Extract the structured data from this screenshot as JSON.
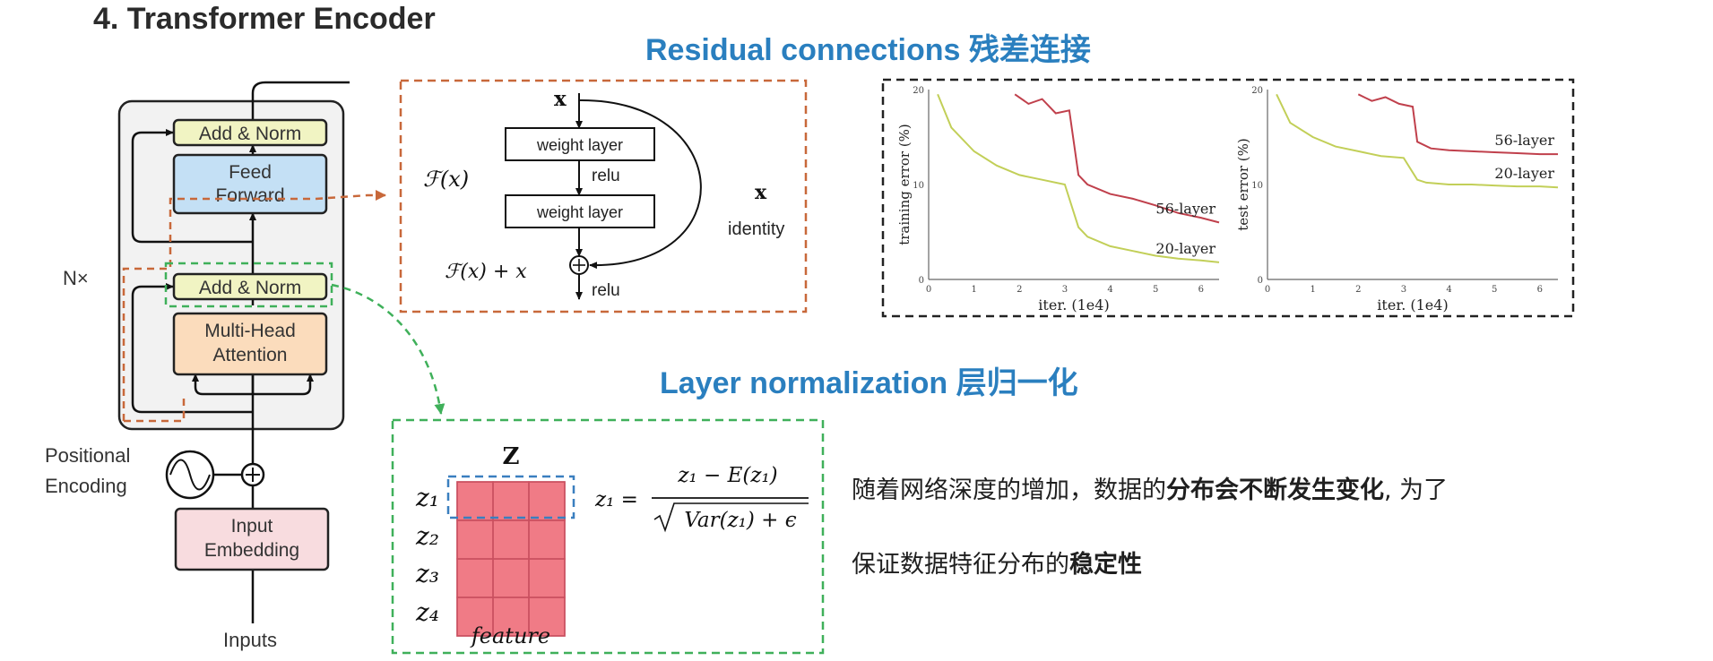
{
  "slide": {
    "title": "4.  Transformer Encoder",
    "residual_title": "Residual connections 残差连接",
    "layernorm_title": "Layer normalization 层归一化"
  },
  "encoder": {
    "add_norm_top": "Add & Norm",
    "feed_forward_line1": "Feed",
    "feed_forward_line2": "Forward",
    "nx": "N×",
    "add_norm_bottom": "Add & Norm",
    "attention_line1": "Multi-Head",
    "attention_line2": "Attention",
    "positional_line1": "Positional",
    "positional_line2": "Encoding",
    "embedding_line1": "Input",
    "embedding_line2": "Embedding",
    "inputs": "Inputs"
  },
  "residual_block": {
    "x_top": "x",
    "weight_layer_1": "weight layer",
    "relu_1": "relu",
    "weight_layer_2": "weight layer",
    "fx": "ℱ(x)",
    "x_identity": "x",
    "identity": "identity",
    "fx_plus_x": "ℱ(x) + x",
    "relu_2": "relu"
  },
  "training_chart": {
    "ylabel": "training error (%)",
    "xlabel": "iter. (1e4)",
    "series_56": "56-layer",
    "series_20": "20-layer",
    "yticks": [
      "0",
      "10",
      "20"
    ],
    "xticks": [
      "0",
      "1",
      "2",
      "3",
      "4",
      "5",
      "6"
    ]
  },
  "test_chart": {
    "ylabel": "test error (%)",
    "xlabel": "iter. (1e4)",
    "series_56": "56-layer",
    "series_20": "20-layer",
    "yticks": [
      "0",
      "10",
      "20"
    ],
    "xticks": [
      "0",
      "1",
      "2",
      "3",
      "4",
      "5",
      "6"
    ]
  },
  "chart_data": [
    {
      "type": "line",
      "ylabel": "training error (%)",
      "xlabel": "iter. (1e4)",
      "xlim": [
        0,
        6.4
      ],
      "ylim": [
        0,
        20
      ],
      "series": [
        {
          "name": "56-layer",
          "x": [
            1.9,
            2.2,
            2.5,
            2.8,
            3.1,
            3.3,
            3.5,
            4.0,
            4.5,
            5.0,
            5.5,
            6.0,
            6.4
          ],
          "y": [
            19.5,
            18.5,
            19.0,
            17.5,
            17.8,
            11.0,
            10.0,
            9.0,
            8.5,
            7.8,
            7.0,
            6.5,
            6.0
          ]
        },
        {
          "name": "20-layer",
          "x": [
            0.2,
            0.5,
            1.0,
            1.5,
            2.0,
            2.5,
            3.0,
            3.3,
            3.5,
            4.0,
            4.5,
            5.0,
            5.5,
            6.0,
            6.4
          ],
          "y": [
            19.5,
            16.0,
            13.5,
            12.0,
            11.0,
            10.5,
            10.0,
            5.5,
            4.5,
            3.5,
            3.0,
            2.5,
            2.2,
            2.0,
            1.8
          ]
        }
      ]
    },
    {
      "type": "line",
      "ylabel": "test error (%)",
      "xlabel": "iter. (1e4)",
      "xlim": [
        0,
        6.4
      ],
      "ylim": [
        0,
        20
      ],
      "series": [
        {
          "name": "56-layer",
          "x": [
            2.0,
            2.3,
            2.6,
            2.9,
            3.2,
            3.3,
            3.6,
            4.0,
            4.5,
            5.0,
            5.5,
            6.0,
            6.4
          ],
          "y": [
            19.5,
            18.8,
            19.2,
            18.5,
            18.2,
            14.5,
            13.8,
            13.6,
            13.5,
            13.4,
            13.3,
            13.2,
            13.2
          ]
        },
        {
          "name": "20-layer",
          "x": [
            0.2,
            0.5,
            1.0,
            1.5,
            2.0,
            2.5,
            3.0,
            3.3,
            3.5,
            4.0,
            4.5,
            5.0,
            5.5,
            6.0,
            6.4
          ],
          "y": [
            19.5,
            16.5,
            15.0,
            14.0,
            13.5,
            13.0,
            12.8,
            10.5,
            10.2,
            10.0,
            10.0,
            9.9,
            9.8,
            9.8,
            9.7
          ]
        }
      ]
    }
  ],
  "layernorm": {
    "matrix_title": "Z",
    "rows": [
      "z₁",
      "z₂",
      "z₃",
      "z₄"
    ],
    "feature": "feature",
    "formula_lhs": "z₁ =",
    "formula_num": "z₁ − E(z₁)",
    "formula_den": "Var(z₁) + ϵ",
    "grid_rows": 4,
    "grid_cols": 3
  },
  "description": {
    "line1_a": "随着网络深度的增加，数据的",
    "line1_b": "分布会不断发生变化",
    "line1_c": ", 为了",
    "line2_a": "保证数据特征分布的",
    "line2_b": "稳定性"
  },
  "colors": {
    "title_blue": "#2a7fbf",
    "add_norm_fill": "#f1f4c3",
    "feed_forward_fill": "#c4e0f5",
    "attention_fill": "#fbdcbc",
    "embedding_fill": "#f8dcdf",
    "orange_dash": "#c8683a",
    "green_dash": "#3fb05a",
    "matrix_fill": "#f07b86",
    "red_line": "#c0404c",
    "yellow_line": "#c2cf58"
  }
}
